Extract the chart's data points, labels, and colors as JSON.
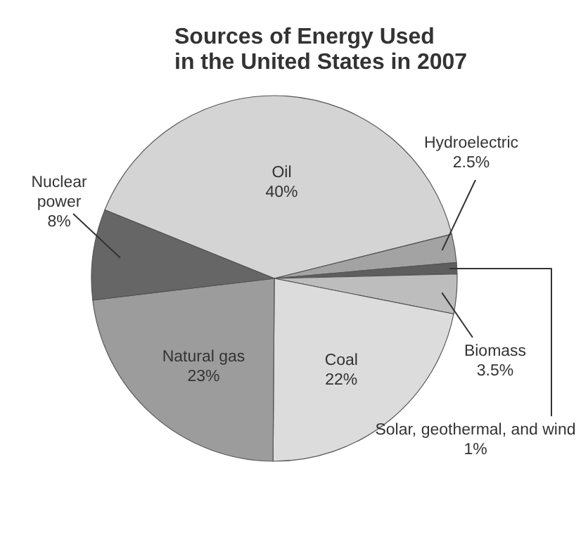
{
  "chart_data": {
    "type": "pie",
    "title": "Sources of Energy Used in the United States in 2007",
    "categories": [
      "Oil",
      "Hydroelectric",
      "Solar, geothermal, and wind",
      "Biomass",
      "Coal",
      "Natural gas",
      "Nuclear power"
    ],
    "values": [
      40,
      2.5,
      1,
      3.5,
      22,
      23,
      8
    ],
    "value_labels": [
      "40%",
      "2.5%",
      "1%",
      "3.5%",
      "22%",
      "23%",
      "8%"
    ],
    "colors": [
      "#d4d4d4",
      "#a3a3a3",
      "#5e5e5e",
      "#bdbdbd",
      "#dcdcdc",
      "#9c9c9c",
      "#666666"
    ]
  }
}
